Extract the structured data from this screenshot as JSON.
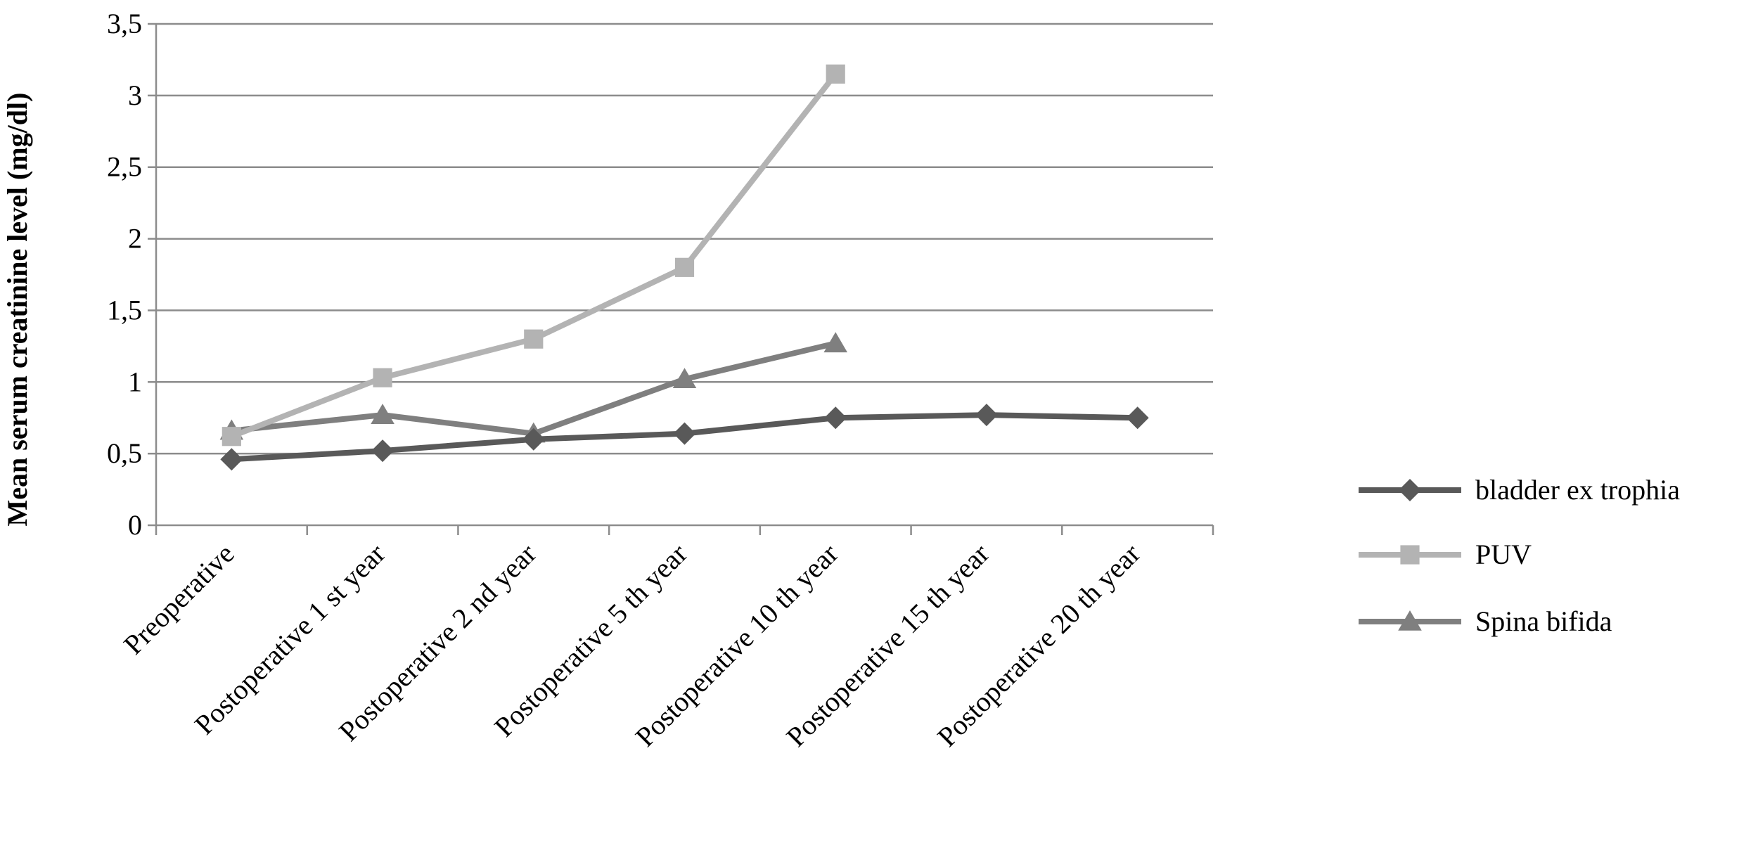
{
  "chart_data": {
    "type": "line",
    "title": "",
    "xlabel": "",
    "ylabel": "Mean  serum creatinine level (mg/dl)",
    "categories": [
      "Preoperative",
      "Postoperative 1 st year",
      "Postoperative 2 nd year",
      "Postoperative 5 th year",
      "Postoperative 10 th year",
      "Postoperative 15 th year",
      "Postoperative 20 th year"
    ],
    "ylim": [
      0,
      3.5
    ],
    "yticks": [
      "0",
      "0,5",
      "1",
      "1,5",
      "2",
      "2,5",
      "3",
      "3,5"
    ],
    "grid": true,
    "legend_position": "right",
    "series": [
      {
        "name": "bladder ex trophia",
        "values": [
          0.46,
          0.52,
          0.6,
          0.64,
          0.75,
          0.77,
          0.75
        ],
        "color": "#595959",
        "marker": "diamond"
      },
      {
        "name": "PUV",
        "values": [
          0.62,
          1.03,
          1.3,
          1.8,
          3.15,
          null,
          null
        ],
        "color": "#b3b3b3",
        "marker": "square"
      },
      {
        "name": "Spina bifida",
        "values": [
          0.66,
          0.77,
          0.64,
          1.02,
          1.27,
          null,
          null
        ],
        "color": "#7f7f7f",
        "marker": "triangle"
      }
    ]
  }
}
